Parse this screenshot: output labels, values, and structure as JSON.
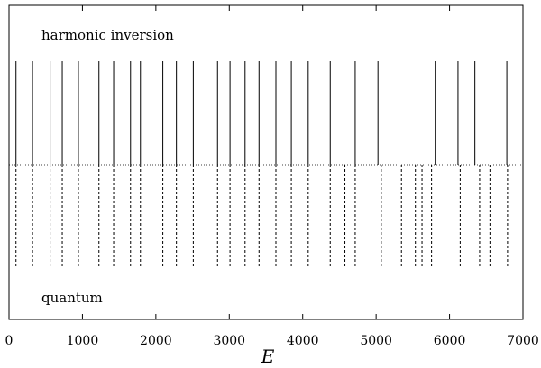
{
  "chart_data": {
    "type": "spectrum",
    "xlabel": "E",
    "xlim": [
      0,
      7000
    ],
    "xticks": [
      0,
      1000,
      2000,
      3000,
      4000,
      5000,
      6000,
      7000
    ],
    "annotations": {
      "top": "harmonic inversion",
      "bottom": "quantum"
    },
    "series": [
      {
        "name": "harmonic inversion",
        "style": "solid",
        "position": "upper",
        "x": [
          95,
          320,
          560,
          725,
          945,
          1225,
          1425,
          1655,
          1790,
          2095,
          2280,
          2510,
          2840,
          3010,
          3215,
          3405,
          3635,
          3845,
          4075,
          4375,
          4715,
          5025,
          5805,
          6115,
          6345,
          6780
        ]
      },
      {
        "name": "quantum",
        "style": "dashed",
        "position": "lower",
        "x": [
          95,
          320,
          560,
          725,
          945,
          1225,
          1425,
          1655,
          1790,
          2095,
          2280,
          2510,
          2840,
          3010,
          3215,
          3405,
          3635,
          3845,
          4075,
          4375,
          4575,
          4715,
          5070,
          5345,
          5535,
          5625,
          5755,
          6145,
          6410,
          6550,
          6790
        ]
      }
    ],
    "colors": {
      "lines": "#000000",
      "axes": "#000000"
    }
  }
}
